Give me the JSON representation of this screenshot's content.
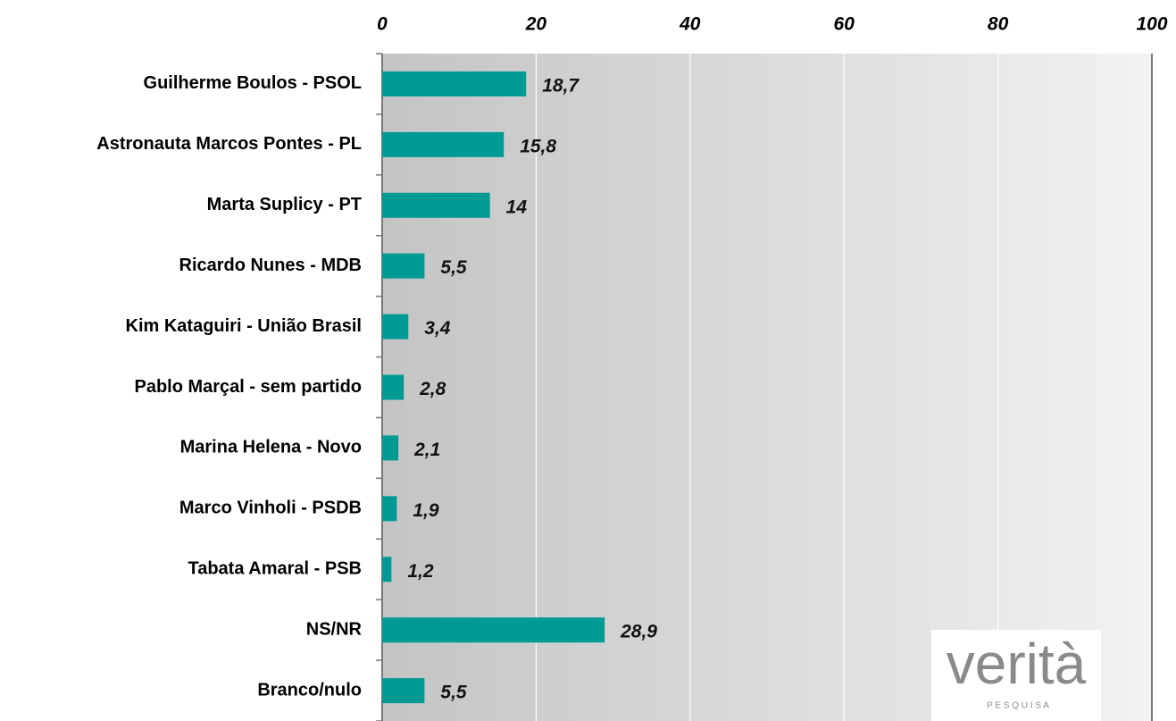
{
  "chart_data": {
    "type": "bar",
    "categories": [
      "Guilherme Boulos - PSOL",
      "Astronauta Marcos Pontes - PL",
      "Marta Suplicy - PT",
      "Ricardo Nunes - MDB",
      "Kim Kataguiri - União Brasil",
      "Pablo Marçal - sem partido",
      "Marina Helena - Novo",
      "Marco Vinholi - PSDB",
      "Tabata Amaral - PSB",
      "NS/NR",
      "Branco/nulo"
    ],
    "values": [
      18.7,
      15.8,
      14,
      5.5,
      3.4,
      2.8,
      2.1,
      1.9,
      1.2,
      28.9,
      5.5
    ],
    "value_labels": [
      "18,7",
      "15,8",
      "14",
      "5,5",
      "3,4",
      "2,8",
      "2,1",
      "1,9",
      "1,2",
      "28,9",
      "5,5"
    ],
    "color": "#009a94",
    "xlim": [
      0,
      100
    ],
    "xticks": [
      0,
      20,
      40,
      60,
      80,
      100
    ],
    "grid": true
  },
  "logo": {
    "name": "verità",
    "sub": "P E S Q U I S A"
  }
}
